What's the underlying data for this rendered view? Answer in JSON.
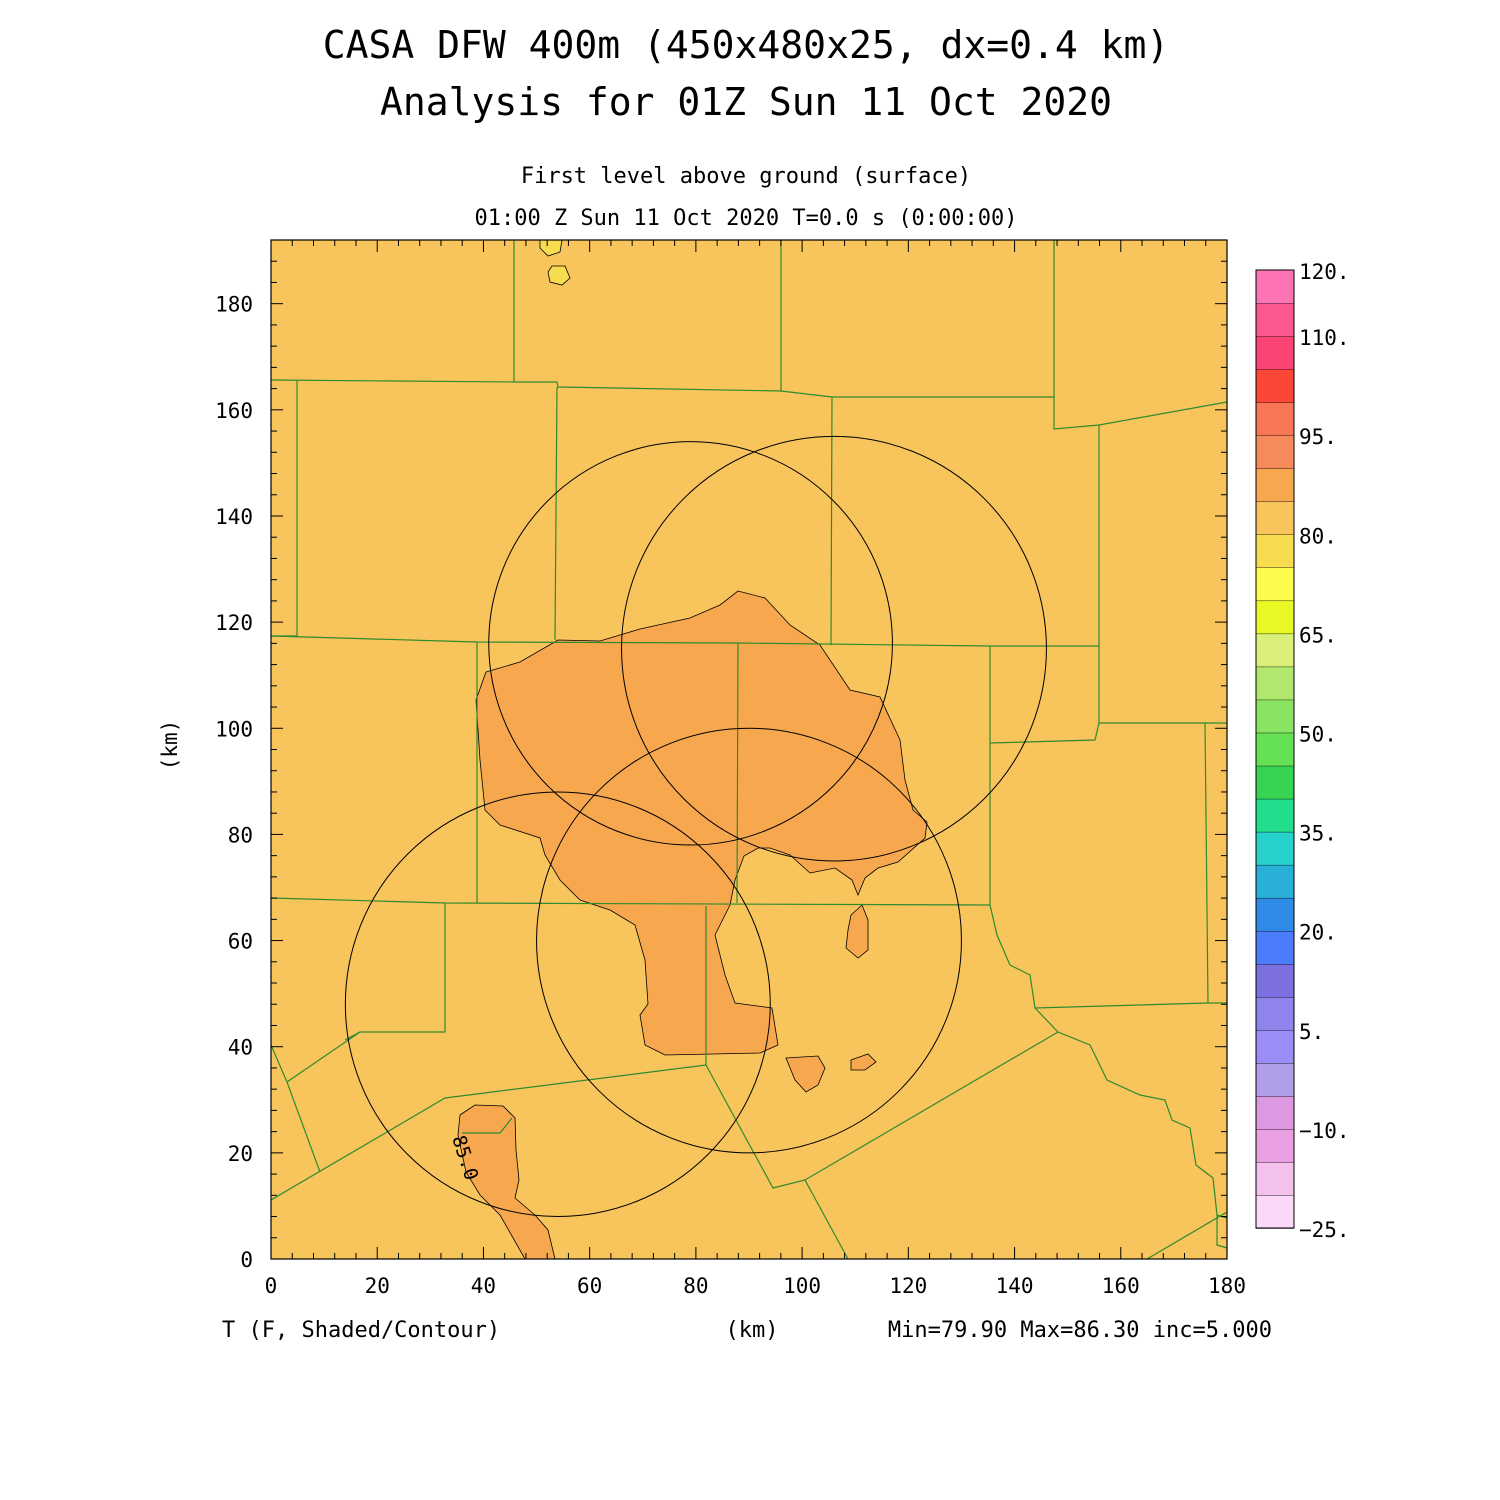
{
  "header": {
    "title_line1": "CASA DFW 400m (450x480x25, dx=0.4 km)",
    "title_line2": "Analysis for 01Z Sun 11 Oct 2020",
    "subtitle_line1": "First level above ground (surface)",
    "subtitle_line2": "01:00 Z Sun 11 Oct 2020   T=0.0 s (0:00:00)"
  },
  "footer": {
    "field_label": "T (F, Shaded/Contour)",
    "xaxis_unit": "(km)",
    "stats": "Min=79.90 Max=86.30 inc=5.000"
  },
  "colors": {
    "background_field": "#f8c45c",
    "warm_field": "#f7a84e",
    "county_lines": "#2e8b2e",
    "radar_rings": "#000000"
  },
  "chart_data": {
    "type": "heatmap",
    "field": "T (F)",
    "xlabel": "(km)",
    "ylabel": "(km)",
    "xlim": [
      0,
      180
    ],
    "ylim": [
      0,
      192
    ],
    "x_ticks": [
      "0",
      "20",
      "40",
      "60",
      "80",
      "100",
      "120",
      "140",
      "160",
      "180"
    ],
    "y_ticks": [
      "0",
      "20",
      "40",
      "60",
      "80",
      "100",
      "120",
      "140",
      "160",
      "180"
    ],
    "min": 79.9,
    "max": 86.3,
    "contour_increment": 5.0,
    "contour_labels": [
      {
        "text": "85.0",
        "x": 37,
        "y": 22
      }
    ],
    "radar_rings_km": [
      {
        "cx": 79,
        "cy": 116,
        "r": 38
      },
      {
        "cx": 106,
        "cy": 115,
        "r": 40
      },
      {
        "cx": 90,
        "cy": 60,
        "r": 40
      },
      {
        "cx": 54,
        "cy": 48,
        "r": 40
      }
    ],
    "colorbar": {
      "colors": [
        "#fcd8f8",
        "#f3c1ec",
        "#e8a0e2",
        "#dc99e2",
        "#b19eea",
        "#9b8df6",
        "#8e84ec",
        "#7c70e0",
        "#4a7cfc",
        "#2e8ce6",
        "#28b0d8",
        "#27d2cc",
        "#22de8c",
        "#37d454",
        "#66e054",
        "#8ae464",
        "#b0e86e",
        "#daf07a",
        "#e8f824",
        "#fcfc4e",
        "#f8dc50",
        "#f8c45c",
        "#f7a84e",
        "#f78a5a",
        "#f77656",
        "#fc4636",
        "#fc4474",
        "#fc5890",
        "#fc74b4"
      ],
      "labels": [
        "120.",
        "110.",
        "95.",
        "80.",
        "65.",
        "50.",
        "35.",
        "20.",
        "5.",
        "−10.",
        "−25."
      ],
      "label_values": [
        120,
        110,
        95,
        80,
        65,
        50,
        35,
        20,
        5,
        -10,
        -25
      ],
      "range": [
        -25,
        120
      ]
    }
  }
}
